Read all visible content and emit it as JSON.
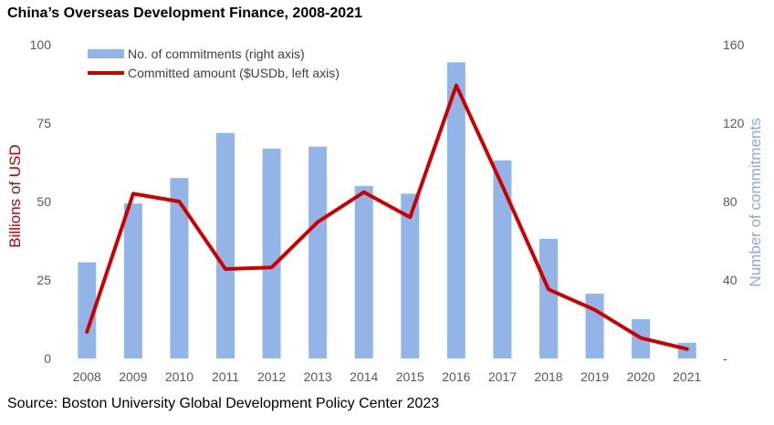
{
  "title": "China’s Overseas Development Finance, 2008-2021",
  "source": "Source: Boston University Global Development Policy Center 2023",
  "colors": {
    "bar": "#93b4e6",
    "line": "#cc0000",
    "left_axis_title": "#c00000",
    "right_axis_title": "#8eaadb",
    "tick": "#595959"
  },
  "chart_data": {
    "type": "bar+line",
    "title": "China’s Overseas Development Finance, 2008-2021",
    "categories": [
      "2008",
      "2009",
      "2010",
      "2011",
      "2012",
      "2013",
      "2014",
      "2015",
      "2016",
      "2017",
      "2018",
      "2019",
      "2020",
      "2021"
    ],
    "series": [
      {
        "name": "No. of commitments (right axis)",
        "type": "bar",
        "axis": "right",
        "values": [
          49,
          79,
          92,
          115,
          107,
          108,
          88,
          84,
          151,
          101,
          61,
          33,
          20,
          8
        ]
      },
      {
        "name": "Committed amount ($USDb, left axis)",
        "type": "line",
        "axis": "left",
        "values": [
          8.5,
          52.5,
          50,
          28.5,
          29,
          43.5,
          53,
          45,
          87,
          55,
          22,
          15.5,
          6.5,
          3
        ]
      }
    ],
    "y_left": {
      "label": "Billions of USD",
      "ylim": [
        0,
        100
      ],
      "ticks": [
        "0",
        "25",
        "50",
        "75",
        "100"
      ],
      "tick_values": [
        0,
        25,
        50,
        75,
        100
      ]
    },
    "y_right": {
      "label": "Number of commitments",
      "ylim": [
        0,
        160
      ],
      "ticks": [
        "-",
        "40",
        "80",
        "120",
        "160"
      ],
      "tick_values": [
        0,
        40,
        80,
        120,
        160
      ]
    },
    "legend_position": "top-left",
    "grid": false
  }
}
